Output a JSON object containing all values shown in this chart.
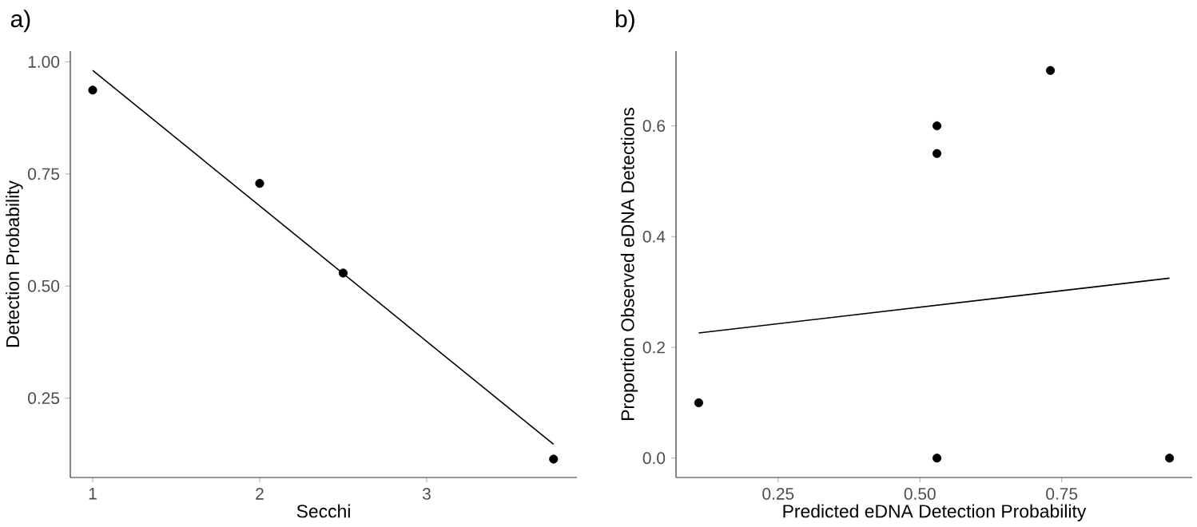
{
  "chart_data": [
    {
      "type": "scatter",
      "title": "a)",
      "xlabel": "Secchi",
      "ylabel": "Detection Probability",
      "xlim": [
        0.866,
        3.9
      ],
      "ylim": [
        0.073,
        1.024
      ],
      "xticks": [
        1,
        2,
        3
      ],
      "yticks": [
        {
          "value": 0.25,
          "label": "0.25"
        },
        {
          "value": 0.5,
          "label": "0.50"
        },
        {
          "value": 0.75,
          "label": "0.75"
        },
        {
          "value": 1.0,
          "label": "1.00"
        }
      ],
      "series": [
        {
          "color": "#000000",
          "marker": "circle",
          "x": [
            1,
            2,
            2.5,
            3.76
          ],
          "values": [
            0.937,
            0.729,
            0.529,
            0.114
          ]
        },
        {
          "type": "line",
          "color": "#000000",
          "x": [
            1,
            3.76
          ],
          "values": [
            0.981,
            0.147
          ]
        }
      ]
    },
    {
      "type": "scatter",
      "title": "b)",
      "xlabel": "Predicted eDNA Detection Probability",
      "ylabel": "Proportion Observed eDNA Detections",
      "xlim": [
        0.07,
        0.98
      ],
      "ylim": [
        -0.035,
        0.735
      ],
      "xticks": [
        0.25,
        {
          "value": 0.5,
          "label": "0.50"
        },
        0.75
      ],
      "yticks": [
        {
          "value": 0,
          "label": "0.0"
        },
        0.2,
        0.4,
        0.6
      ],
      "series": [
        {
          "color": "#000000",
          "marker": "circle",
          "x": [
            0.11,
            0.53,
            0.53,
            0.53,
            0.73,
            0.94
          ],
          "values": [
            0.1,
            0.6,
            0.55,
            0.0,
            0.7,
            0.0
          ]
        },
        {
          "type": "line",
          "color": "#000000",
          "x": [
            0.11,
            0.94
          ],
          "values": [
            0.226,
            0.325
          ]
        }
      ]
    }
  ]
}
